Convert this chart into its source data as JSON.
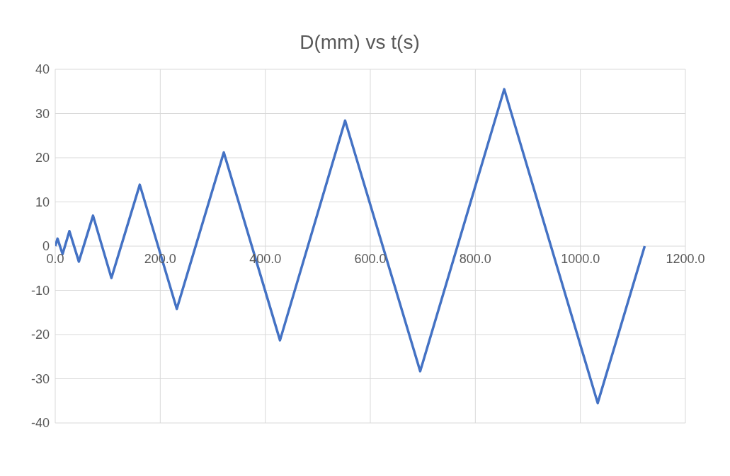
{
  "chart_data": {
    "type": "line",
    "title": "D(mm) vs t(s)",
    "x": [
      0,
      4.4,
      14,
      27,
      45,
      72,
      107,
      161,
      231.5,
      321,
      428,
      552,
      695,
      855,
      1033,
      1122.5
    ],
    "series": [
      {
        "color": "#4472c4",
        "values": [
          0,
          1.7,
          -1.8,
          3.4,
          -3.5,
          6.9,
          -7.2,
          13.9,
          -14.2,
          21.2,
          -21.3,
          28.4,
          -28.3,
          35.5,
          -35.5,
          0
        ]
      }
    ],
    "xlim": [
      0,
      1200
    ],
    "xticks": [
      {
        "value": 0,
        "label": "0.0"
      },
      {
        "value": 200,
        "label": "200.0"
      },
      {
        "value": 400,
        "label": "400.0"
      },
      {
        "value": 600,
        "label": "600.0"
      },
      {
        "value": 800,
        "label": "800.0"
      },
      {
        "value": 1000,
        "label": "1000.0"
      },
      {
        "value": 1200,
        "label": "1200.0"
      }
    ],
    "ylim": [
      -40,
      40
    ],
    "yticks": [
      -40,
      -30,
      -20,
      -10,
      0,
      10,
      20,
      30,
      40
    ],
    "grid": true,
    "legend": false,
    "marker": "none",
    "line_style": "solid"
  }
}
